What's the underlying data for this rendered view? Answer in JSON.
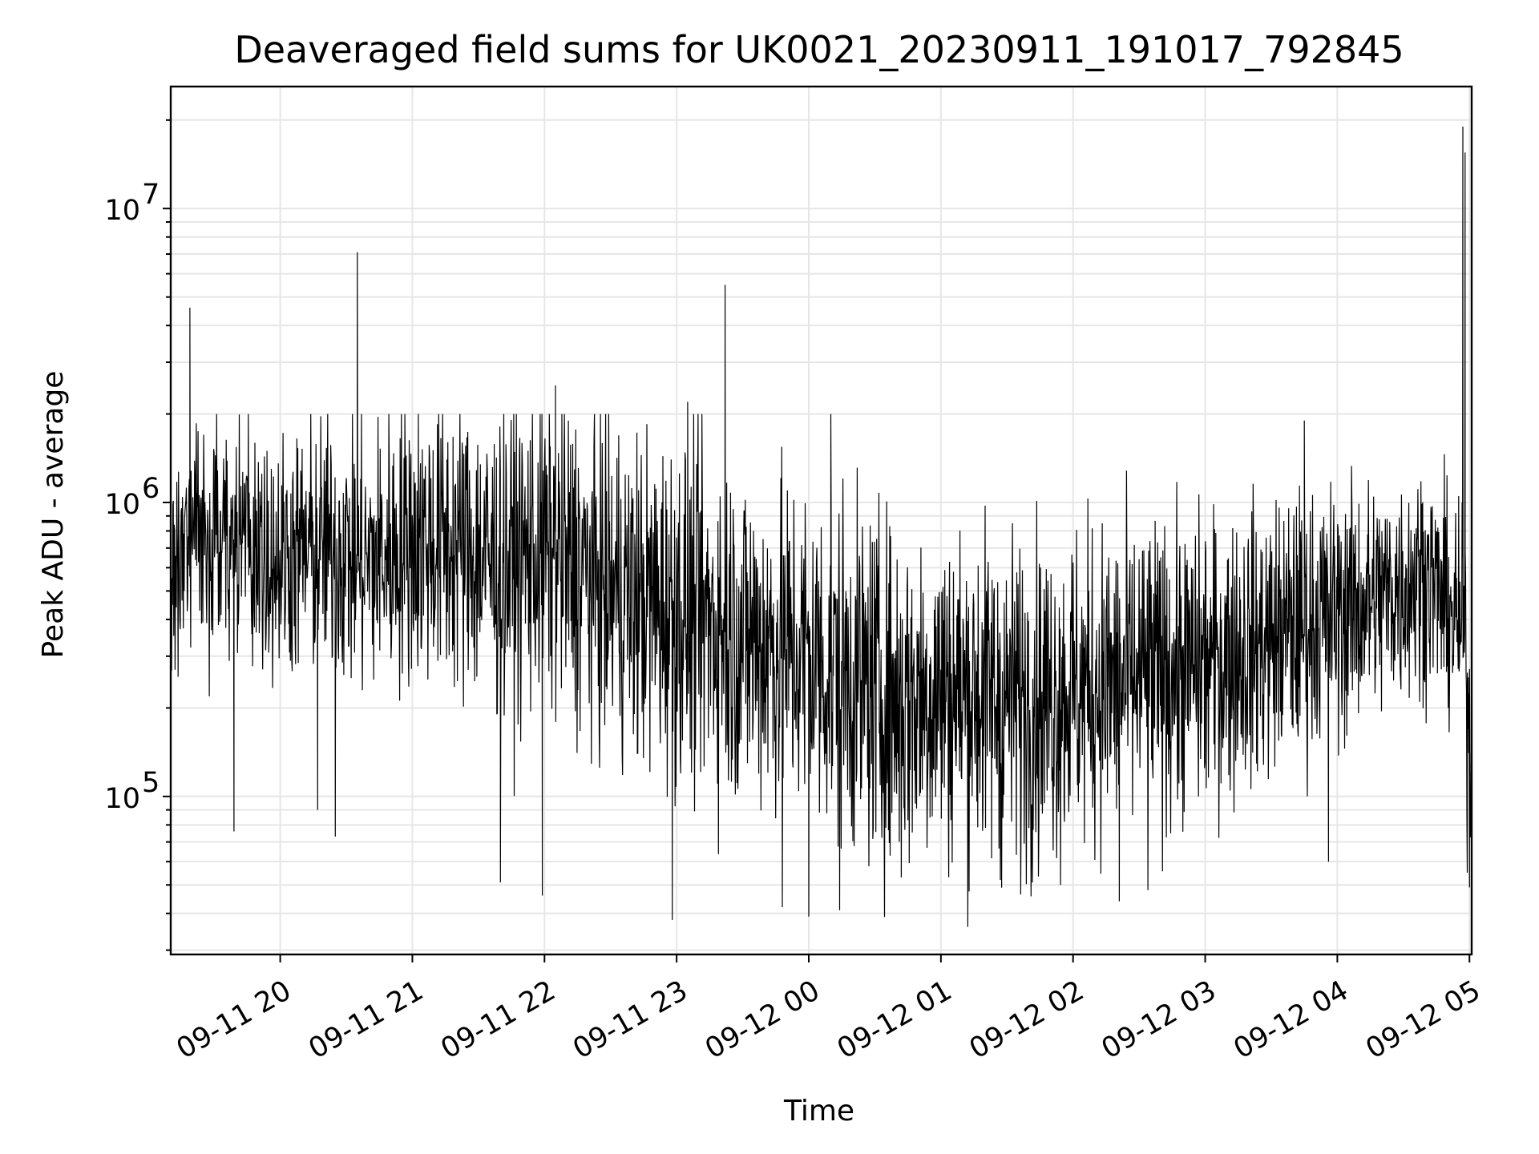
{
  "chart_data": {
    "type": "line",
    "title": "Deaveraged field sums for UK0021_20230911_191017_792845",
    "xlabel": "Time",
    "ylabel": "Peak ADU - average",
    "x_scale": "time",
    "y_scale": "log",
    "xlim": [
      "2023-09-11T19:10:17",
      "2023-09-12T05:01:00"
    ],
    "ylim": [
      29000,
      26000000
    ],
    "grid": true,
    "legend": "none",
    "line_color": "#000000",
    "x_ticks": [
      {
        "label": "09-11 20",
        "value": "2023-09-11T20:00:00"
      },
      {
        "label": "09-11 21",
        "value": "2023-09-11T21:00:00"
      },
      {
        "label": "09-11 22",
        "value": "2023-09-11T22:00:00"
      },
      {
        "label": "09-11 23",
        "value": "2023-09-11T23:00:00"
      },
      {
        "label": "09-12 00",
        "value": "2023-09-12T00:00:00"
      },
      {
        "label": "09-12 01",
        "value": "2023-09-12T01:00:00"
      },
      {
        "label": "09-12 02",
        "value": "2023-09-12T02:00:00"
      },
      {
        "label": "09-12 03",
        "value": "2023-09-12T03:00:00"
      },
      {
        "label": "09-12 04",
        "value": "2023-09-12T04:00:00"
      },
      {
        "label": "09-12 05",
        "value": "2023-09-12T05:00:00"
      }
    ],
    "y_ticks": [
      {
        "base": "10",
        "exp": "5",
        "value": 100000
      },
      {
        "base": "10",
        "exp": "6",
        "value": 1000000
      },
      {
        "base": "10",
        "exp": "7",
        "value": 10000000
      }
    ],
    "series": [
      {
        "points": [
          [
            "2023-09-11T19:10:17",
            500000
          ],
          [
            "2023-09-11T19:20:00",
            800000
          ],
          [
            "2023-09-11T19:40:00",
            700000
          ],
          [
            "2023-09-11T20:00:00",
            650000
          ],
          [
            "2023-09-11T20:20:00",
            700000
          ],
          [
            "2023-09-11T20:40:00",
            620000
          ],
          [
            "2023-09-11T21:00:00",
            750000
          ],
          [
            "2023-09-11T21:20:00",
            720000
          ],
          [
            "2023-09-11T21:40:00",
            600000
          ],
          [
            "2023-09-11T22:00:00",
            700000
          ],
          [
            "2023-09-11T22:20:00",
            560000
          ],
          [
            "2023-09-11T22:40:00",
            470000
          ],
          [
            "2023-09-11T23:00:00",
            430000
          ],
          [
            "2023-09-11T23:20:00",
            380000
          ],
          [
            "2023-09-11T23:40:00",
            330000
          ],
          [
            "2023-09-12T00:00:00",
            300000
          ],
          [
            "2023-09-12T00:20:00",
            250000
          ],
          [
            "2023-09-12T00:40:00",
            210000
          ],
          [
            "2023-09-12T01:00:00",
            230000
          ],
          [
            "2023-09-12T01:20:00",
            220000
          ],
          [
            "2023-09-12T01:40:00",
            210000
          ],
          [
            "2023-09-12T02:00:00",
            230000
          ],
          [
            "2023-09-12T02:20:00",
            240000
          ],
          [
            "2023-09-12T02:40:00",
            260000
          ],
          [
            "2023-09-12T03:00:00",
            280000
          ],
          [
            "2023-09-12T03:20:00",
            320000
          ],
          [
            "2023-09-12T03:40:00",
            370000
          ],
          [
            "2023-09-12T04:00:00",
            420000
          ],
          [
            "2023-09-12T04:20:00",
            470000
          ],
          [
            "2023-09-12T04:40:00",
            580000
          ],
          [
            "2023-09-12T04:58:00",
            350000
          ],
          [
            "2023-09-12T05:01:00",
            120000
          ]
        ],
        "spikes": [
          [
            "2023-09-11T19:19:00",
            4600000
          ],
          [
            "2023-09-11T20:35:00",
            7100000
          ],
          [
            "2023-09-11T22:05:00",
            2500000
          ],
          [
            "2023-09-11T23:05:00",
            2200000
          ],
          [
            "2023-09-11T23:22:00",
            5500000
          ],
          [
            "2023-09-12T00:10:00",
            2000000
          ],
          [
            "2023-09-12T03:45:00",
            1900000
          ],
          [
            "2023-09-12T04:57:00",
            19000000
          ],
          [
            "2023-09-12T04:58:00",
            15500000
          ]
        ],
        "dips": [
          [
            "2023-09-11T19:39:00",
            76000
          ],
          [
            "2023-09-11T20:17:00",
            90000
          ],
          [
            "2023-09-11T20:25:00",
            73000
          ],
          [
            "2023-09-11T21:40:00",
            51000
          ],
          [
            "2023-09-11T21:59:00",
            46000
          ],
          [
            "2023-09-11T22:58:00",
            38000
          ],
          [
            "2023-09-11T23:48:00",
            42000
          ],
          [
            "2023-09-12T00:00:00",
            39000
          ],
          [
            "2023-09-12T00:14:00",
            41000
          ],
          [
            "2023-09-12T00:42:00",
            53000
          ],
          [
            "2023-09-12T01:27:00",
            52000
          ],
          [
            "2023-09-12T02:21:00",
            44000
          ],
          [
            "2023-09-12T02:34:00",
            48000
          ],
          [
            "2023-09-12T03:56:00",
            60000
          ],
          [
            "2023-09-12T04:59:00",
            55000
          ],
          [
            "2023-09-12T05:00:00",
            49000
          ]
        ]
      }
    ]
  }
}
